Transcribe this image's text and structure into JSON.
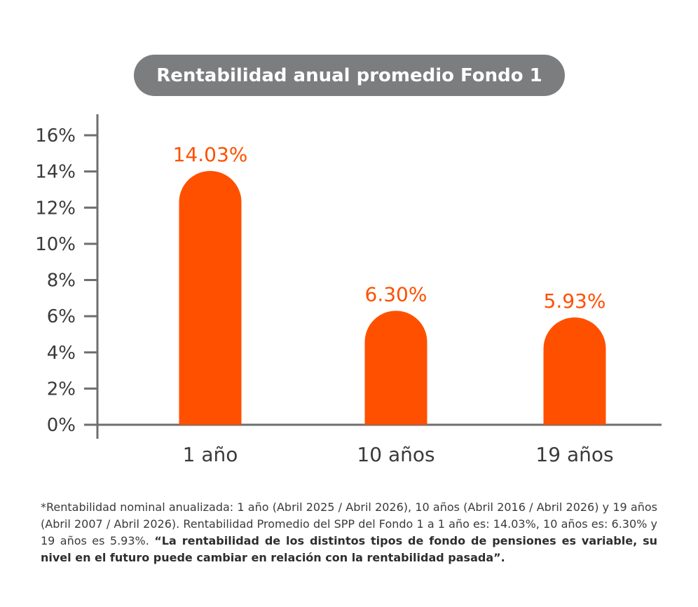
{
  "colors": {
    "bar": "#ff5000",
    "axis": "#6e6e6e",
    "pill": "#7b7d7f",
    "text": "#3a3a3a"
  },
  "chart_data": {
    "type": "bar",
    "title": "Rentabilidad anual promedio Fondo 1",
    "categories": [
      "1 año",
      "10 años",
      "19 años"
    ],
    "values": [
      14.03,
      6.3,
      5.93
    ],
    "value_labels": [
      "14.03%",
      "6.30%",
      "5.93%"
    ],
    "ylim": [
      0,
      16
    ],
    "yticks": [
      0,
      2,
      4,
      6,
      8,
      10,
      12,
      14,
      16
    ],
    "ytick_labels": [
      "0%",
      "2%",
      "4%",
      "6%",
      "8%",
      "10%",
      "12%",
      "14%",
      "16%"
    ],
    "grid": false
  },
  "footnote": {
    "regular": "*Rentabilidad nominal anualizada: 1 año (Abril 2025 / Abril 2026), 10 años (Abril 2016 / Abril 2026) y 19 años (Abril 2007 / Abril 2026). Rentabilidad Promedio del SPP del Fondo 1 a 1 año es: 14.03%, 10 años es: 6.30% y 19 años es 5.93%. ",
    "bold": "“La rentabilidad de los distintos tipos de fondo de pensiones es variable, su nivel en el futuro puede cambiar en relación con la rentabilidad pasada”."
  }
}
